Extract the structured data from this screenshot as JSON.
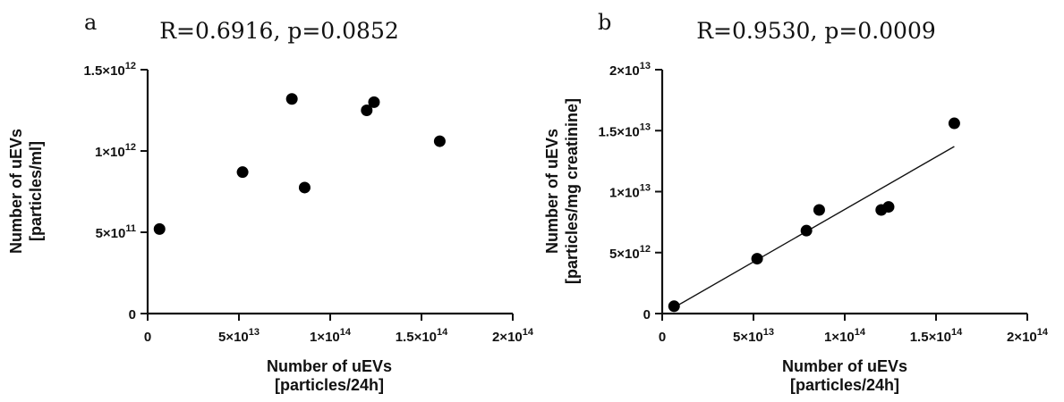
{
  "chart_data": [
    {
      "panel": "a",
      "type": "scatter",
      "title": "R=0.6916, p=0.0852",
      "xlabel": [
        "Number of uEVs",
        "[particles/24h]"
      ],
      "ylabel": [
        "Number of uEVs",
        "[particles/ml]"
      ],
      "xlim": [
        0,
        200000000000000.0
      ],
      "ylim": [
        0,
        1500000000000.0
      ],
      "x_ticks": [
        {
          "value": 0,
          "base": "0",
          "exp": ""
        },
        {
          "value": 50000000000000.0,
          "base": "5×10",
          "exp": "13"
        },
        {
          "value": 100000000000000.0,
          "base": "1×10",
          "exp": "14"
        },
        {
          "value": 150000000000000.0,
          "base": "1.5×10",
          "exp": "14"
        },
        {
          "value": 200000000000000.0,
          "base": "2×10",
          "exp": "14"
        }
      ],
      "y_ticks": [
        {
          "value": 0,
          "base": "0",
          "exp": ""
        },
        {
          "value": 500000000000.0,
          "base": "5×10",
          "exp": "11"
        },
        {
          "value": 1000000000000.0,
          "base": "1×10",
          "exp": "12"
        },
        {
          "value": 1500000000000.0,
          "base": "1.5×10",
          "exp": "12"
        }
      ],
      "grid": false,
      "fit_line": null,
      "points": [
        {
          "x": 6500000000000.0,
          "y": 520000000000.0
        },
        {
          "x": 52000000000000.0,
          "y": 870000000000.0
        },
        {
          "x": 79000000000000.0,
          "y": 1320000000000.0
        },
        {
          "x": 86000000000000.0,
          "y": 775000000000.0
        },
        {
          "x": 120000000000000.0,
          "y": 1250000000000.0
        },
        {
          "x": 124000000000000.0,
          "y": 1300000000000.0
        },
        {
          "x": 160000000000000.0,
          "y": 1060000000000.0
        }
      ]
    },
    {
      "panel": "b",
      "type": "scatter",
      "title": "R=0.9530, p=0.0009",
      "xlabel": [
        "Number of uEVs",
        "[particles/24h]"
      ],
      "ylabel": [
        "Number of uEVs",
        "[particles/mg creatinine]"
      ],
      "xlim": [
        0,
        200000000000000.0
      ],
      "ylim": [
        0,
        20000000000000.0
      ],
      "x_ticks": [
        {
          "value": 0,
          "base": "0",
          "exp": ""
        },
        {
          "value": 50000000000000.0,
          "base": "5×10",
          "exp": "13"
        },
        {
          "value": 100000000000000.0,
          "base": "1×10",
          "exp": "14"
        },
        {
          "value": 150000000000000.0,
          "base": "1.5×10",
          "exp": "14"
        },
        {
          "value": 200000000000000.0,
          "base": "2×10",
          "exp": "14"
        }
      ],
      "y_ticks": [
        {
          "value": 0,
          "base": "0",
          "exp": ""
        },
        {
          "value": 5000000000000.0,
          "base": "5×10",
          "exp": "12"
        },
        {
          "value": 10000000000000.0,
          "base": "1×10",
          "exp": "13"
        },
        {
          "value": 15000000000000.0,
          "base": "1.5×10",
          "exp": "13"
        },
        {
          "value": 20000000000000.0,
          "base": "2×10",
          "exp": "13"
        }
      ],
      "grid": false,
      "fit_line": {
        "x": [
          6500000000000.0,
          160000000000000.0
        ],
        "y": [
          500000000000.0,
          13700000000000.0
        ]
      },
      "points": [
        {
          "x": 6500000000000.0,
          "y": 600000000000.0
        },
        {
          "x": 52000000000000.0,
          "y": 4500000000000.0
        },
        {
          "x": 79000000000000.0,
          "y": 6800000000000.0
        },
        {
          "x": 86000000000000.0,
          "y": 8500000000000.0
        },
        {
          "x": 120000000000000.0,
          "y": 8500000000000.0
        },
        {
          "x": 124000000000000.0,
          "y": 8750000000000.0
        },
        {
          "x": 160000000000000.0,
          "y": 15600000000000.0
        }
      ]
    }
  ]
}
